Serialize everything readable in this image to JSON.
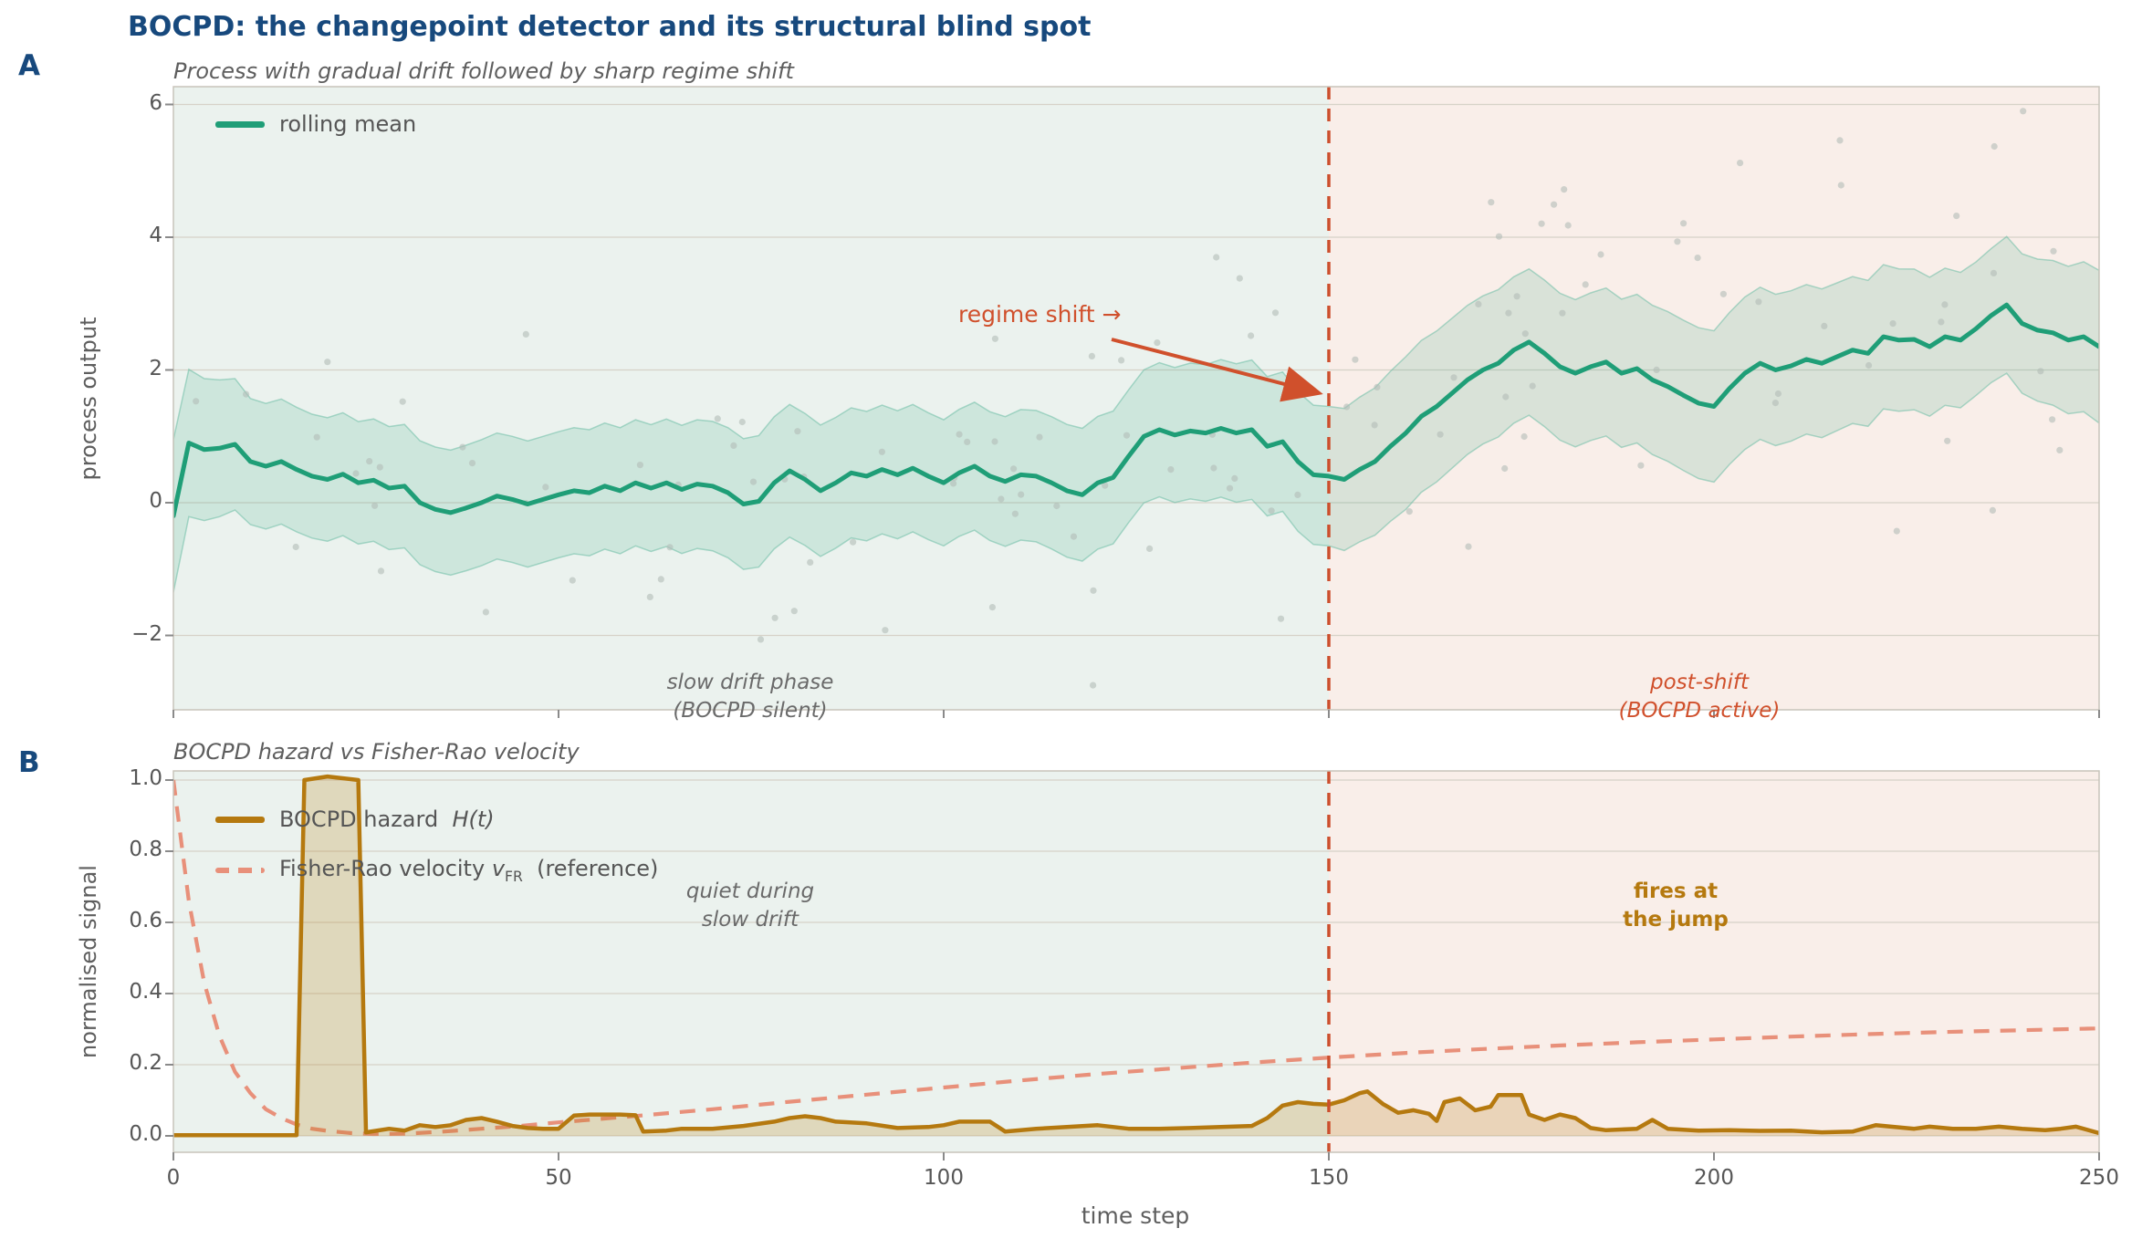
{
  "title": "BOCPD: the changepoint detector and its structural blind spot",
  "xaxis": {
    "label": "time step",
    "ticks": [
      "0",
      "50",
      "100",
      "150",
      "200",
      "250"
    ]
  },
  "panelA": {
    "label": "A",
    "subtitle": "Process with gradual drift followed by sharp regime shift",
    "ylabel": "process output",
    "yticks": [
      "6",
      "4",
      "2",
      "0",
      "−2"
    ],
    "legend": {
      "rolling_mean": "rolling mean"
    },
    "annotations": {
      "regime_shift": "regime shift  →",
      "slow_drift_line1": "slow drift phase",
      "slow_drift_line2": "(BOCPD silent)",
      "post_shift_line1": "post-shift",
      "post_shift_line2": "(BOCPD active)"
    }
  },
  "panelB": {
    "label": "B",
    "subtitle": "BOCPD hazard vs Fisher-Rao velocity",
    "ylabel": "normalised signal",
    "yticks": [
      "1.0",
      "0.8",
      "0.6",
      "0.4",
      "0.2",
      "0.0"
    ],
    "legend": {
      "hazard_prefix": "BOCPD hazard",
      "hazard_math": "H(t)",
      "vfr_prefix": "Fisher-Rao velocity",
      "vfr_symbol": "v",
      "vfr_sub": "FR",
      "vfr_suffix": "(reference)"
    },
    "annotations": {
      "quiet_line1": "quiet during",
      "quiet_line2": "slow drift",
      "fires_line1": "fires at",
      "fires_line2": "the jump"
    }
  },
  "colors": {
    "title_navy": "#17497d",
    "mean_green": "#1f9e77",
    "band_fill": "rgba(31,158,119,0.15)",
    "band_edge": "rgba(110,190,165,0.55)",
    "scatter_gray": "#b3bdb7",
    "hazard_gold": "#b5790f",
    "hazard_fill": "rgba(181,121,15,0.22)",
    "vfr_salmon": "#e8907a",
    "regime_orange": "#d0502c",
    "regime_line": "#cc4f2d",
    "bg_left": "#ebf2ee",
    "bg_right": "#f9eee9",
    "grid": "#d6d2c8",
    "spine": "#c8c4ba",
    "tickmark": "#8a8a8a"
  },
  "chart_data": [
    {
      "panel": "A",
      "type": "line",
      "title": "Process with gradual drift followed by sharp regime shift",
      "xlabel": "time step",
      "ylabel": "process output",
      "xlim": [
        0,
        250
      ],
      "ylim": [
        -3.1,
        6.3
      ],
      "grid": "horizontal",
      "legend_position": "upper left",
      "changepoint_x": 150,
      "rolling_mean": {
        "t_start": 0,
        "t_step": 2,
        "y": [
          -0.2,
          0.9,
          0.8,
          0.82,
          0.88,
          0.62,
          0.55,
          0.62,
          0.5,
          0.4,
          0.35,
          0.43,
          0.3,
          0.34,
          0.22,
          0.25,
          0.0,
          -0.1,
          -0.15,
          -0.08,
          0.0,
          0.1,
          0.05,
          -0.02,
          0.05,
          0.12,
          0.18,
          0.15,
          0.25,
          0.18,
          0.3,
          0.22,
          0.3,
          0.2,
          0.28,
          0.25,
          0.15,
          -0.02,
          0.02,
          0.3,
          0.48,
          0.35,
          0.18,
          0.3,
          0.45,
          0.4,
          0.5,
          0.42,
          0.52,
          0.4,
          0.3,
          0.45,
          0.55,
          0.4,
          0.32,
          0.42,
          0.4,
          0.3,
          0.18,
          0.12,
          0.3,
          0.38,
          0.7,
          1.0,
          1.1,
          1.02,
          1.08,
          1.05,
          1.12,
          1.05,
          1.1,
          0.85,
          0.92,
          0.62,
          0.42,
          0.4,
          0.35,
          0.5,
          0.62,
          0.85,
          1.05,
          1.3,
          1.45,
          1.65,
          1.85,
          2.0,
          2.1,
          2.3,
          2.42,
          2.25,
          2.05,
          1.95,
          2.05,
          2.12,
          1.95,
          2.02,
          1.85,
          1.75,
          1.62,
          1.5,
          1.45,
          1.72,
          1.95,
          2.1,
          2.0,
          2.06,
          2.16,
          2.1,
          2.2,
          2.3,
          2.25,
          2.5,
          2.45,
          2.46,
          2.35,
          2.5,
          2.45,
          2.62,
          2.82,
          2.98,
          2.7,
          2.6,
          2.56,
          2.45,
          2.5,
          2.35
        ]
      },
      "band_halfwidth_points": [
        [
          0,
          1.15
        ],
        [
          10,
          0.95
        ],
        [
          25,
          0.92
        ],
        [
          40,
          0.95
        ],
        [
          60,
          0.95
        ],
        [
          80,
          1.0
        ],
        [
          100,
          0.95
        ],
        [
          115,
          1.0
        ],
        [
          125,
          1.0
        ],
        [
          140,
          1.05
        ],
        [
          150,
          1.05
        ],
        [
          160,
          1.15
        ],
        [
          175,
          1.1
        ],
        [
          190,
          1.12
        ],
        [
          205,
          1.15
        ],
        [
          220,
          1.1
        ],
        [
          235,
          1.0
        ],
        [
          250,
          1.15
        ]
      ],
      "scatter": {
        "count": 125,
        "noise_sd": 1.5,
        "clip": [
          -2.75,
          5.9
        ],
        "seed": 7
      }
    },
    {
      "panel": "B",
      "type": "line",
      "title": "BOCPD hazard vs Fisher-Rao velocity",
      "xlabel": "time step",
      "ylabel": "normalised signal",
      "xlim": [
        0,
        250
      ],
      "ylim": [
        -0.05,
        1.03
      ],
      "grid": "horizontal",
      "legend_position": "upper left",
      "changepoint_x": 150,
      "series": [
        {
          "name": "BOCPD hazard H(t)",
          "style": "solid-filled",
          "points": [
            [
              0,
              0.002
            ],
            [
              16,
              0.002
            ],
            [
              17,
              1.0
            ],
            [
              20,
              1.01
            ],
            [
              24,
              1.0
            ],
            [
              25,
              0.01
            ],
            [
              28,
              0.02
            ],
            [
              30,
              0.015
            ],
            [
              32,
              0.03
            ],
            [
              34,
              0.025
            ],
            [
              36,
              0.03
            ],
            [
              38,
              0.045
            ],
            [
              40,
              0.05
            ],
            [
              42,
              0.04
            ],
            [
              44,
              0.028
            ],
            [
              46,
              0.022
            ],
            [
              48,
              0.02
            ],
            [
              50,
              0.02
            ],
            [
              52,
              0.057
            ],
            [
              54,
              0.06
            ],
            [
              58,
              0.06
            ],
            [
              60,
              0.058
            ],
            [
              61,
              0.012
            ],
            [
              64,
              0.015
            ],
            [
              66,
              0.02
            ],
            [
              70,
              0.02
            ],
            [
              74,
              0.028
            ],
            [
              78,
              0.04
            ],
            [
              80,
              0.05
            ],
            [
              82,
              0.055
            ],
            [
              84,
              0.05
            ],
            [
              86,
              0.04
            ],
            [
              90,
              0.035
            ],
            [
              94,
              0.022
            ],
            [
              98,
              0.025
            ],
            [
              100,
              0.03
            ],
            [
              102,
              0.04
            ],
            [
              106,
              0.04
            ],
            [
              108,
              0.012
            ],
            [
              112,
              0.02
            ],
            [
              116,
              0.025
            ],
            [
              120,
              0.03
            ],
            [
              124,
              0.02
            ],
            [
              128,
              0.02
            ],
            [
              132,
              0.022
            ],
            [
              136,
              0.025
            ],
            [
              140,
              0.028
            ],
            [
              142,
              0.05
            ],
            [
              144,
              0.085
            ],
            [
              146,
              0.095
            ],
            [
              148,
              0.09
            ],
            [
              150,
              0.088
            ],
            [
              152,
              0.1
            ],
            [
              154,
              0.12
            ],
            [
              155,
              0.125
            ],
            [
              157,
              0.09
            ],
            [
              159,
              0.065
            ],
            [
              161,
              0.072
            ],
            [
              163,
              0.062
            ],
            [
              164,
              0.042
            ],
            [
              165,
              0.095
            ],
            [
              167,
              0.105
            ],
            [
              169,
              0.072
            ],
            [
              171,
              0.082
            ],
            [
              172,
              0.115
            ],
            [
              175,
              0.115
            ],
            [
              176,
              0.06
            ],
            [
              178,
              0.045
            ],
            [
              180,
              0.06
            ],
            [
              182,
              0.05
            ],
            [
              184,
              0.022
            ],
            [
              186,
              0.016
            ],
            [
              190,
              0.02
            ],
            [
              192,
              0.045
            ],
            [
              194,
              0.02
            ],
            [
              198,
              0.015
            ],
            [
              202,
              0.016
            ],
            [
              206,
              0.014
            ],
            [
              210,
              0.015
            ],
            [
              214,
              0.01
            ],
            [
              218,
              0.012
            ],
            [
              221,
              0.03
            ],
            [
              223,
              0.026
            ],
            [
              226,
              0.02
            ],
            [
              228,
              0.026
            ],
            [
              231,
              0.02
            ],
            [
              234,
              0.02
            ],
            [
              237,
              0.026
            ],
            [
              240,
              0.02
            ],
            [
              243,
              0.016
            ],
            [
              245,
              0.02
            ],
            [
              247,
              0.026
            ],
            [
              250,
              0.008
            ]
          ]
        },
        {
          "name": "Fisher-Rao velocity vFR (reference)",
          "style": "dashed",
          "points": [
            [
              0,
              1.0
            ],
            [
              2,
              0.66
            ],
            [
              4,
              0.43
            ],
            [
              6,
              0.28
            ],
            [
              8,
              0.18
            ],
            [
              10,
              0.12
            ],
            [
              12,
              0.075
            ],
            [
              14,
              0.05
            ],
            [
              16,
              0.032
            ],
            [
              18,
              0.02
            ],
            [
              20,
              0.014
            ],
            [
              23,
              0.008
            ],
            [
              26,
              0.005
            ],
            [
              30,
              0.006
            ],
            [
              35,
              0.012
            ],
            [
              40,
              0.02
            ],
            [
              45,
              0.028
            ],
            [
              50,
              0.038
            ],
            [
              55,
              0.047
            ],
            [
              60,
              0.056
            ],
            [
              70,
              0.075
            ],
            [
              80,
              0.096
            ],
            [
              90,
              0.116
            ],
            [
              100,
              0.136
            ],
            [
              110,
              0.156
            ],
            [
              120,
              0.174
            ],
            [
              130,
              0.19
            ],
            [
              140,
              0.206
            ],
            [
              150,
              0.22
            ],
            [
              160,
              0.233
            ],
            [
              170,
              0.244
            ],
            [
              180,
              0.254
            ],
            [
              190,
              0.263
            ],
            [
              200,
              0.271
            ],
            [
              210,
              0.279
            ],
            [
              220,
              0.286
            ],
            [
              230,
              0.292
            ],
            [
              240,
              0.297
            ],
            [
              250,
              0.302
            ]
          ]
        }
      ]
    }
  ]
}
